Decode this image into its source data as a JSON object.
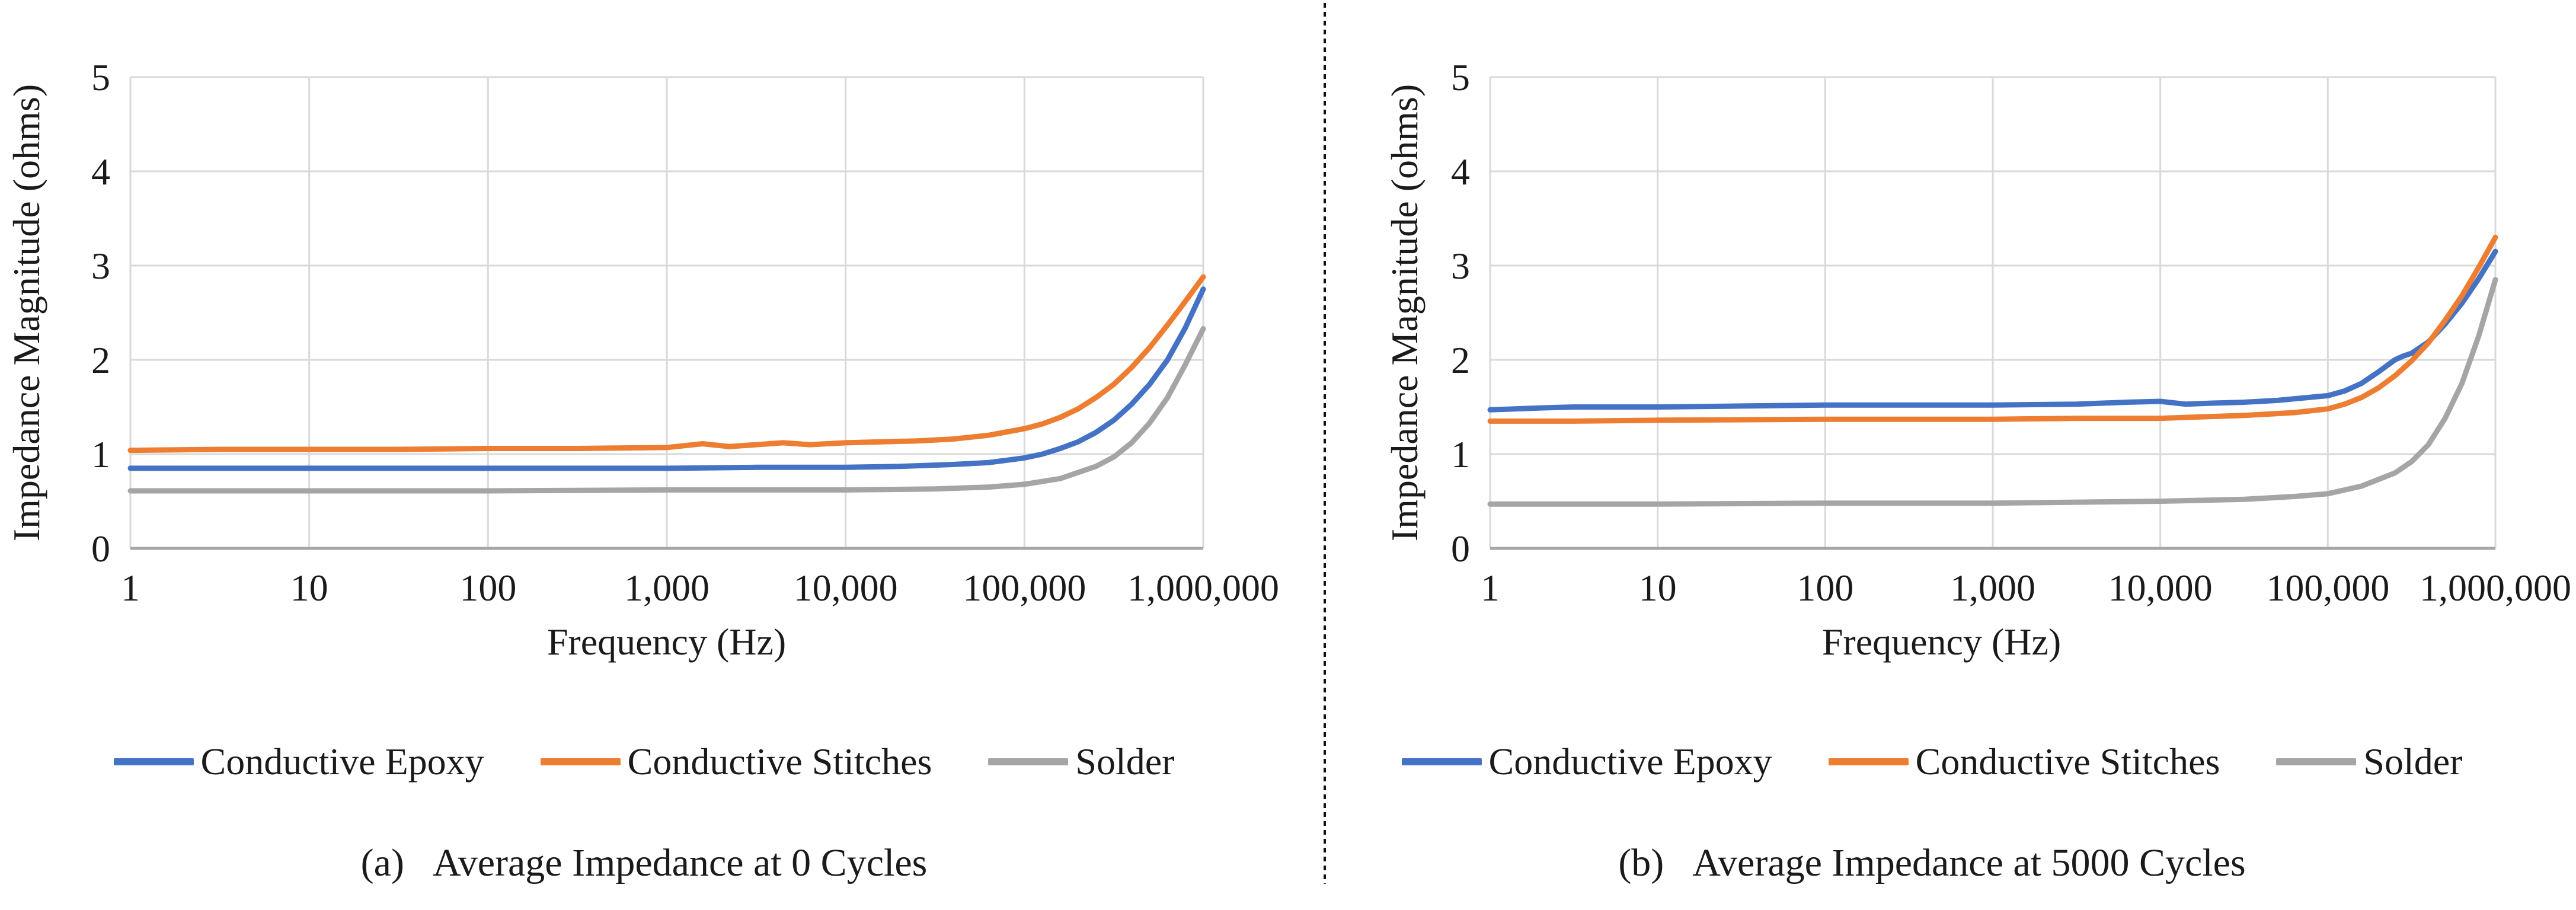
{
  "figure": {
    "background": "#ffffff",
    "divider": {
      "style": "dashed-vertical",
      "color": "#111111"
    },
    "grid_color": "#d9d9d9",
    "axis_color": "#a6a6a6",
    "text_color": "#1a1a1a"
  },
  "chart_data": [
    {
      "type": "line",
      "caption_prefix": "(a)",
      "caption_text": "Average Impedance at 0 Cycles",
      "title": "Average Impedance at 0 Cycles",
      "xlabel": "Frequency (Hz)",
      "ylabel": "Impedance Magnitude (ohms)",
      "x_scale": "log",
      "xlim_log10": [
        0,
        6
      ],
      "ylim": [
        0,
        5
      ],
      "grid": true,
      "legend_position": "bottom",
      "x_tick_labels": [
        "1",
        "10",
        "100",
        "1,000",
        "10,000",
        "100,000",
        "1,000,000"
      ],
      "y_tick_labels": [
        "0",
        "1",
        "2",
        "3",
        "4",
        "5"
      ],
      "series": [
        {
          "name": "Conductive Epoxy",
          "color": "#4472C4",
          "points": [
            [
              0,
              0.85
            ],
            [
              0.5,
              0.85
            ],
            [
              1,
              0.85
            ],
            [
              1.5,
              0.85
            ],
            [
              2,
              0.85
            ],
            [
              2.5,
              0.85
            ],
            [
              3,
              0.85
            ],
            [
              3.5,
              0.86
            ],
            [
              4,
              0.86
            ],
            [
              4.3,
              0.87
            ],
            [
              4.6,
              0.89
            ],
            [
              4.8,
              0.91
            ],
            [
              5,
              0.96
            ],
            [
              5.1,
              1.0
            ],
            [
              5.2,
              1.06
            ],
            [
              5.3,
              1.13
            ],
            [
              5.4,
              1.23
            ],
            [
              5.5,
              1.36
            ],
            [
              5.6,
              1.53
            ],
            [
              5.7,
              1.74
            ],
            [
              5.8,
              2.0
            ],
            [
              5.9,
              2.34
            ],
            [
              6,
              2.75
            ]
          ]
        },
        {
          "name": "Conductive Stitches",
          "color": "#ED7D31",
          "points": [
            [
              0,
              1.04
            ],
            [
              0.5,
              1.05
            ],
            [
              1,
              1.05
            ],
            [
              1.5,
              1.05
            ],
            [
              2,
              1.06
            ],
            [
              2.5,
              1.06
            ],
            [
              3,
              1.07
            ],
            [
              3.2,
              1.11
            ],
            [
              3.35,
              1.08
            ],
            [
              3.5,
              1.1
            ],
            [
              3.65,
              1.12
            ],
            [
              3.8,
              1.1
            ],
            [
              4,
              1.12
            ],
            [
              4.2,
              1.13
            ],
            [
              4.4,
              1.14
            ],
            [
              4.6,
              1.16
            ],
            [
              4.8,
              1.2
            ],
            [
              5,
              1.27
            ],
            [
              5.1,
              1.32
            ],
            [
              5.2,
              1.39
            ],
            [
              5.3,
              1.48
            ],
            [
              5.4,
              1.6
            ],
            [
              5.5,
              1.74
            ],
            [
              5.6,
              1.92
            ],
            [
              5.7,
              2.13
            ],
            [
              5.8,
              2.37
            ],
            [
              5.9,
              2.62
            ],
            [
              6,
              2.88
            ]
          ]
        },
        {
          "name": "Solder",
          "color": "#A5A5A5",
          "points": [
            [
              0,
              0.61
            ],
            [
              1,
              0.61
            ],
            [
              2,
              0.61
            ],
            [
              3,
              0.62
            ],
            [
              4,
              0.62
            ],
            [
              4.5,
              0.63
            ],
            [
              4.8,
              0.65
            ],
            [
              5,
              0.68
            ],
            [
              5.2,
              0.74
            ],
            [
              5.4,
              0.87
            ],
            [
              5.5,
              0.97
            ],
            [
              5.6,
              1.12
            ],
            [
              5.7,
              1.33
            ],
            [
              5.8,
              1.6
            ],
            [
              5.9,
              1.95
            ],
            [
              6,
              2.33
            ]
          ]
        }
      ]
    },
    {
      "type": "line",
      "caption_prefix": "(b)",
      "caption_text": "Average Impedance at 5000 Cycles",
      "title": "Average Impedance at 5000 Cycles",
      "xlabel": "Frequency (Hz)",
      "ylabel": "Impedance Magnitude (ohms)",
      "x_scale": "log",
      "xlim_log10": [
        0,
        6
      ],
      "ylim": [
        0,
        5
      ],
      "grid": true,
      "legend_position": "bottom",
      "x_tick_labels": [
        "1",
        "10",
        "100",
        "1,000",
        "10,000",
        "100,000",
        "1,000,000"
      ],
      "y_tick_labels": [
        "0",
        "1",
        "2",
        "3",
        "4",
        "5"
      ],
      "series": [
        {
          "name": "Conductive Epoxy",
          "color": "#4472C4",
          "points": [
            [
              0,
              1.47
            ],
            [
              0.3,
              1.49
            ],
            [
              0.5,
              1.5
            ],
            [
              1,
              1.5
            ],
            [
              1.5,
              1.51
            ],
            [
              2,
              1.52
            ],
            [
              2.5,
              1.52
            ],
            [
              3,
              1.52
            ],
            [
              3.5,
              1.53
            ],
            [
              3.8,
              1.55
            ],
            [
              4,
              1.56
            ],
            [
              4.15,
              1.53
            ],
            [
              4.3,
              1.54
            ],
            [
              4.5,
              1.55
            ],
            [
              4.7,
              1.57
            ],
            [
              5,
              1.62
            ],
            [
              5.1,
              1.67
            ],
            [
              5.2,
              1.75
            ],
            [
              5.3,
              1.87
            ],
            [
              5.4,
              2.0
            ],
            [
              5.45,
              2.04
            ],
            [
              5.5,
              2.07
            ],
            [
              5.6,
              2.19
            ],
            [
              5.7,
              2.38
            ],
            [
              5.8,
              2.6
            ],
            [
              5.9,
              2.86
            ],
            [
              6,
              3.15
            ]
          ]
        },
        {
          "name": "Conductive Stitches",
          "color": "#ED7D31",
          "points": [
            [
              0,
              1.35
            ],
            [
              0.5,
              1.35
            ],
            [
              1,
              1.36
            ],
            [
              2,
              1.37
            ],
            [
              3,
              1.37
            ],
            [
              3.5,
              1.38
            ],
            [
              4,
              1.38
            ],
            [
              4.5,
              1.41
            ],
            [
              4.8,
              1.44
            ],
            [
              5,
              1.48
            ],
            [
              5.1,
              1.53
            ],
            [
              5.2,
              1.6
            ],
            [
              5.3,
              1.7
            ],
            [
              5.4,
              1.83
            ],
            [
              5.5,
              1.99
            ],
            [
              5.6,
              2.18
            ],
            [
              5.7,
              2.42
            ],
            [
              5.8,
              2.68
            ],
            [
              5.9,
              2.98
            ],
            [
              6,
              3.3
            ]
          ]
        },
        {
          "name": "Solder",
          "color": "#A5A5A5",
          "points": [
            [
              0,
              0.47
            ],
            [
              1,
              0.47
            ],
            [
              2,
              0.48
            ],
            [
              3,
              0.48
            ],
            [
              4,
              0.5
            ],
            [
              4.5,
              0.52
            ],
            [
              4.8,
              0.55
            ],
            [
              5,
              0.58
            ],
            [
              5.2,
              0.66
            ],
            [
              5.4,
              0.8
            ],
            [
              5.5,
              0.92
            ],
            [
              5.6,
              1.1
            ],
            [
              5.7,
              1.38
            ],
            [
              5.8,
              1.75
            ],
            [
              5.9,
              2.25
            ],
            [
              6,
              2.85
            ]
          ]
        }
      ]
    }
  ]
}
